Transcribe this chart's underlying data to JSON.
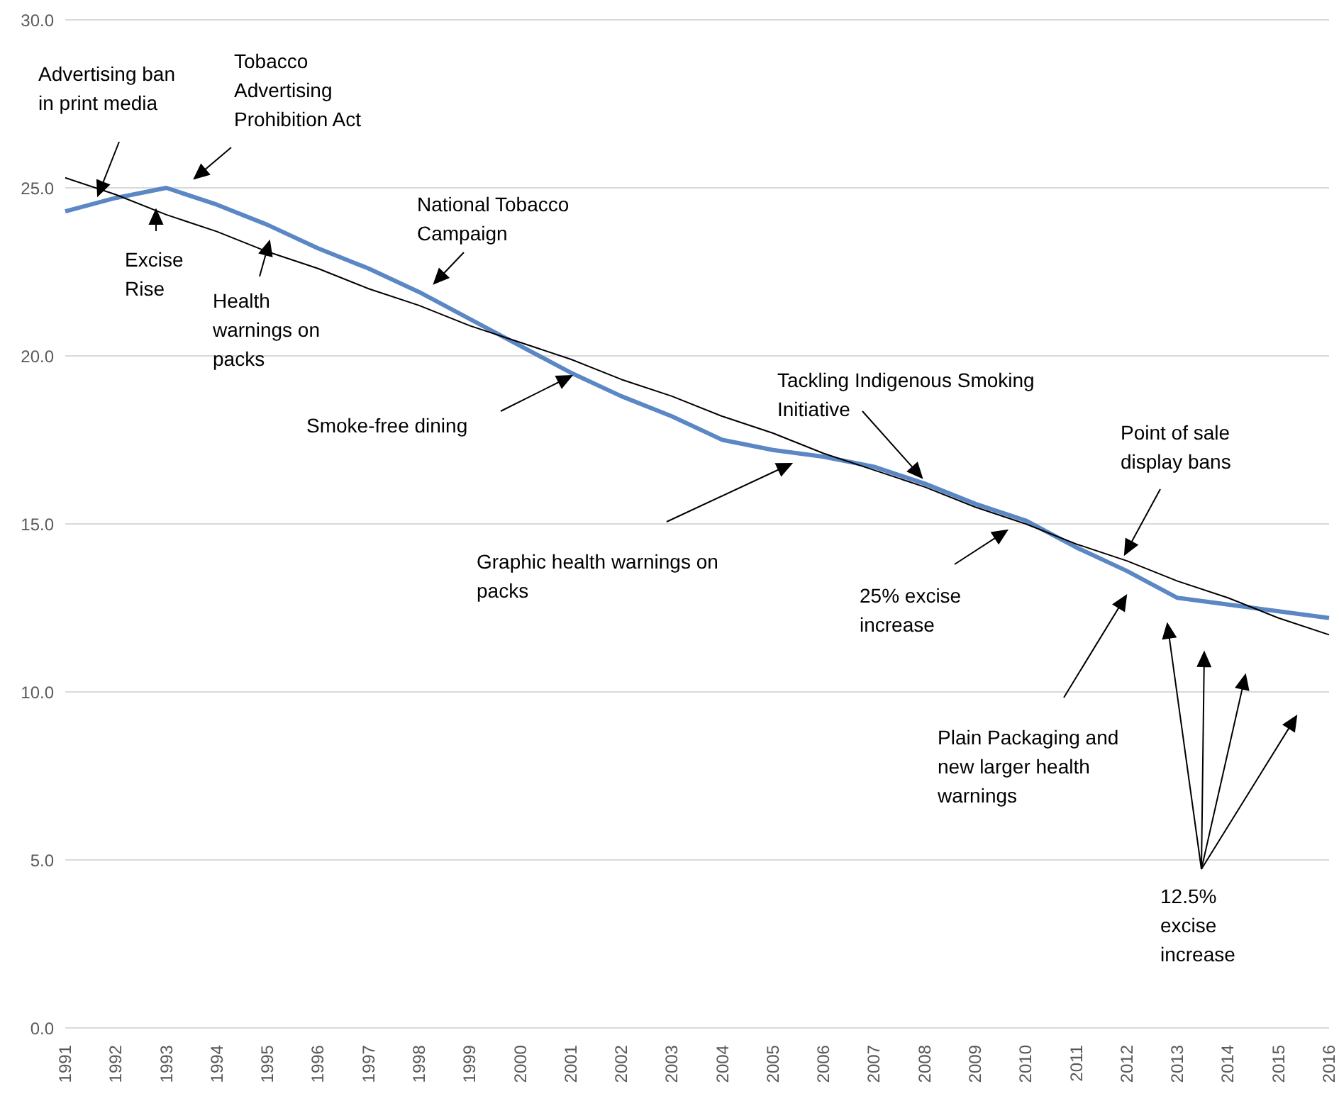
{
  "chart_data": {
    "type": "line",
    "categories": [
      "1991",
      "1992",
      "1993",
      "1994",
      "1995",
      "1996",
      "1997",
      "1998",
      "1999",
      "2000",
      "2001",
      "2002",
      "2003",
      "2004",
      "2005",
      "2006",
      "2007",
      "2008",
      "2009",
      "2010",
      "2011",
      "2012",
      "2013",
      "2014",
      "2015",
      "2016"
    ],
    "series": [
      {
        "color": "#5b87c5",
        "values": [
          24.3,
          24.7,
          25.0,
          24.5,
          23.9,
          23.2,
          22.6,
          21.9,
          21.1,
          20.3,
          19.5,
          18.8,
          18.2,
          17.5,
          17.2,
          17.0,
          16.7,
          16.2,
          15.6,
          15.1,
          14.3,
          13.6,
          12.8,
          12.6,
          12.4,
          12.2
        ]
      },
      {
        "color": "#000000",
        "values": [
          25.3,
          24.8,
          24.2,
          23.7,
          23.1,
          22.6,
          22.0,
          21.5,
          20.9,
          20.4,
          19.9,
          19.3,
          18.8,
          18.2,
          17.7,
          17.1,
          16.6,
          16.1,
          15.5,
          15.0,
          14.4,
          13.9,
          13.3,
          12.8,
          12.2,
          11.7
        ]
      }
    ],
    "ylim": [
      0,
      30
    ],
    "yticks": [
      {
        "value": 0,
        "label": "0.0"
      },
      {
        "value": 5,
        "label": "5.0"
      },
      {
        "value": 10,
        "label": "10.0"
      },
      {
        "value": 15,
        "label": "15.0"
      },
      {
        "value": 20,
        "label": "20.0"
      },
      {
        "value": 25,
        "label": "25.0"
      },
      {
        "value": 30,
        "label": "30.0"
      }
    ],
    "grid": "y",
    "marker": "none",
    "line_style": "solid",
    "annotations": [
      "Advertising ban in print media",
      "Tobacco Advertising Prohibition Act",
      "Excise Rise",
      "Health warnings on packs",
      "National Tobacco Campaign",
      "Smoke-free dining",
      "Graphic health warnings on packs",
      "Tackling Indigenous Smoking Initiative",
      "Point of sale display bans",
      "25% excise increase",
      "Plain Packaging and new larger health warnings",
      "12.5% excise increase"
    ]
  }
}
